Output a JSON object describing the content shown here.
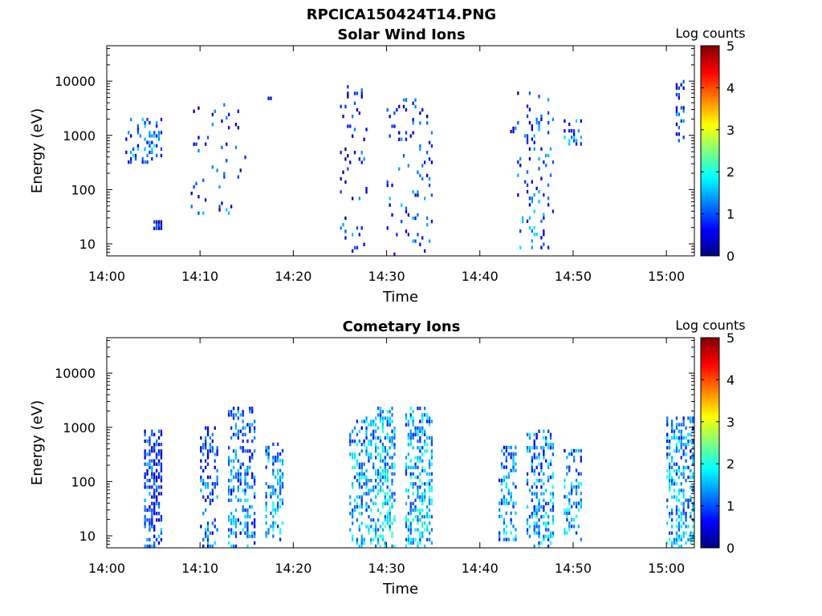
{
  "figure_title": "RPCICA150424T14.PNG",
  "chart_data": [
    {
      "type": "heatmap",
      "title": "Solar Wind Ions",
      "xlabel": "Time",
      "ylabel": "Energy (eV)",
      "yscale": "log",
      "ylim": [
        6,
        45000
      ],
      "xlim": [
        "14:00",
        "15:03"
      ],
      "x_ticks": [
        "14:00",
        "14:10",
        "14:20",
        "14:30",
        "14:40",
        "14:50",
        "15:00"
      ],
      "y_ticks": [
        "10",
        "100",
        "1000",
        "10000"
      ],
      "colorbar": {
        "label": "Log counts",
        "range": [
          0,
          5
        ],
        "ticks": [
          "0",
          "1",
          "2",
          "3",
          "4",
          "5"
        ],
        "colormap": "jet"
      },
      "grid": false,
      "clusters": [
        {
          "t_start": "14:02",
          "t_end": "14:06",
          "e_min": 300,
          "e_max": 2000,
          "level": 1.2,
          "density": 0.25
        },
        {
          "t_start": "14:05",
          "t_end": "14:06",
          "e_min": 18,
          "e_max": 25,
          "level": 0.6,
          "density": 0.9
        },
        {
          "t_start": "14:09",
          "t_end": "14:15",
          "e_min": 30,
          "e_max": 3500,
          "level": 1.0,
          "density": 0.06
        },
        {
          "t_start": "14:17",
          "t_end": "14:18",
          "e_min": 4500,
          "e_max": 6500,
          "level": 0.8,
          "density": 0.3
        },
        {
          "t_start": "14:25",
          "t_end": "14:28",
          "e_min": 6,
          "e_max": 11000,
          "level": 1.0,
          "density": 0.07
        },
        {
          "t_start": "14:30",
          "t_end": "14:35",
          "e_min": 6,
          "e_max": 5000,
          "level": 1.1,
          "density": 0.09
        },
        {
          "t_start": "14:43",
          "t_end": "14:44",
          "e_min": 1100,
          "e_max": 1300,
          "level": 0.8,
          "density": 0.5
        },
        {
          "t_start": "14:44",
          "t_end": "14:48",
          "e_min": 8,
          "e_max": 6000,
          "level": 1.2,
          "density": 0.12
        },
        {
          "t_start": "14:49",
          "t_end": "14:51",
          "e_min": 650,
          "e_max": 1900,
          "level": 1.2,
          "density": 0.3
        },
        {
          "t_start": "15:01",
          "t_end": "15:02",
          "e_min": 650,
          "e_max": 9500,
          "level": 0.9,
          "density": 0.3
        }
      ]
    },
    {
      "type": "heatmap",
      "title": "Cometary Ions",
      "xlabel": "Time",
      "ylabel": "Energy (eV)",
      "yscale": "log",
      "ylim": [
        6,
        45000
      ],
      "xlim": [
        "14:00",
        "15:03"
      ],
      "x_ticks": [
        "14:00",
        "14:10",
        "14:20",
        "14:30",
        "14:40",
        "14:50",
        "15:00"
      ],
      "y_ticks": [
        "10",
        "100",
        "1000",
        "10000"
      ],
      "colorbar": {
        "label": "Log counts",
        "range": [
          0,
          5
        ],
        "ticks": [
          "0",
          "1",
          "2",
          "3",
          "4",
          "5"
        ],
        "colormap": "jet"
      },
      "grid": false,
      "clusters": [
        {
          "t_start": "14:04",
          "t_end": "14:06",
          "e_min": 6,
          "e_max": 900,
          "level": 1.0,
          "density": 0.45
        },
        {
          "t_start": "14:10",
          "t_end": "14:12",
          "e_min": 6,
          "e_max": 1000,
          "level": 1.1,
          "density": 0.3
        },
        {
          "t_start": "14:13",
          "t_end": "14:16",
          "e_min": 6,
          "e_max": 2100,
          "level": 1.3,
          "density": 0.35
        },
        {
          "t_start": "14:17",
          "t_end": "14:19",
          "e_min": 8,
          "e_max": 500,
          "level": 1.5,
          "density": 0.4
        },
        {
          "t_start": "14:26",
          "t_end": "14:29",
          "e_min": 6,
          "e_max": 1500,
          "level": 1.6,
          "density": 0.4
        },
        {
          "t_start": "14:29",
          "t_end": "14:31",
          "e_min": 6,
          "e_max": 2100,
          "level": 1.8,
          "density": 0.45
        },
        {
          "t_start": "14:32",
          "t_end": "14:35",
          "e_min": 6,
          "e_max": 2100,
          "level": 1.7,
          "density": 0.45
        },
        {
          "t_start": "14:42",
          "t_end": "14:44",
          "e_min": 8,
          "e_max": 400,
          "level": 1.4,
          "density": 0.35
        },
        {
          "t_start": "14:45",
          "t_end": "14:48",
          "e_min": 6,
          "e_max": 900,
          "level": 1.5,
          "density": 0.4
        },
        {
          "t_start": "14:49",
          "t_end": "14:51",
          "e_min": 8,
          "e_max": 350,
          "level": 1.5,
          "density": 0.35
        },
        {
          "t_start": "15:00",
          "t_end": "15:03",
          "e_min": 6,
          "e_max": 1500,
          "level": 1.6,
          "density": 0.4
        }
      ]
    }
  ]
}
